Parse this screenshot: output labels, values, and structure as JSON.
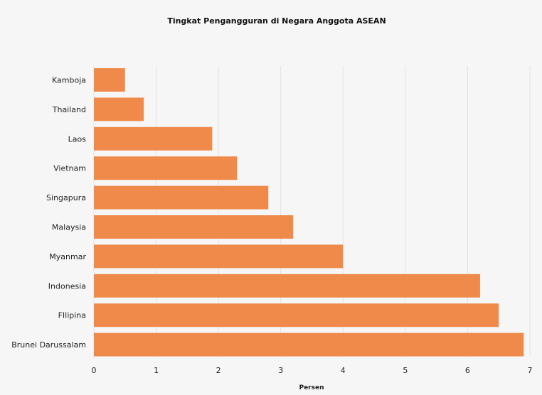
{
  "chart_data": {
    "type": "bar",
    "orientation": "horizontal",
    "title": "Tingkat Pengangguran di Negara Anggota ASEAN",
    "xlabel": "Persen",
    "ylabel": "",
    "categories": [
      "Kamboja",
      "Thailand",
      "Laos",
      "Vietnam",
      "Singapura",
      "Malaysia",
      "Myanmar",
      "Indonesia",
      "FIlipina",
      "Brunei Darussalam"
    ],
    "values": [
      0.5,
      0.8,
      1.9,
      2.3,
      2.8,
      3.2,
      4.0,
      6.2,
      6.5,
      6.9
    ],
    "xlim": [
      0,
      7
    ],
    "xticks": [
      0,
      1,
      2,
      3,
      4,
      5,
      6,
      7
    ],
    "grid": "vertical",
    "bar_color": "#f08a4b",
    "grid_color": "#e2e2e2"
  }
}
